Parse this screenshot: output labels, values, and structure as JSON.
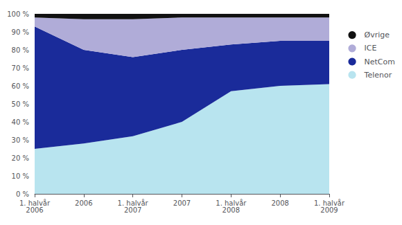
{
  "chart_data": {
    "type": "area",
    "stacked": true,
    "categories": [
      "1. halvår\n2006",
      "2006",
      "1. halvår\n2007",
      "2007",
      "1. halvår\n2008",
      "2008",
      "1. halvår\n2009"
    ],
    "series": [
      {
        "name": "Telenor",
        "color": "#b8e4ef",
        "values": [
          25,
          28,
          32,
          40,
          57,
          60,
          61
        ]
      },
      {
        "name": "NetCom",
        "color": "#1a2b9a",
        "values": [
          68,
          52,
          44,
          40,
          26,
          25,
          24
        ]
      },
      {
        "name": "ICE",
        "color": "#b0acd8",
        "values": [
          5,
          17,
          21,
          18,
          15,
          13,
          13
        ]
      },
      {
        "name": "Øvrige",
        "color": "#111111",
        "values": [
          2,
          3,
          3,
          2,
          2,
          2,
          2
        ]
      }
    ],
    "ylim": [
      0,
      100
    ],
    "yticks": [
      {
        "value": 0,
        "label": "0 %"
      },
      {
        "value": 10,
        "label": "10 %"
      },
      {
        "value": 20,
        "label": "20 %"
      },
      {
        "value": 30,
        "label": "30 %"
      },
      {
        "value": 40,
        "label": "40 %"
      },
      {
        "value": 50,
        "label": "50 %"
      },
      {
        "value": 60,
        "label": "60 %"
      },
      {
        "value": 70,
        "label": "70 %"
      },
      {
        "value": 80,
        "label": "80 %"
      },
      {
        "value": 90,
        "label": "90 %"
      },
      {
        "value": 100,
        "label": "100 %"
      }
    ],
    "grid": false,
    "legend": "right"
  }
}
